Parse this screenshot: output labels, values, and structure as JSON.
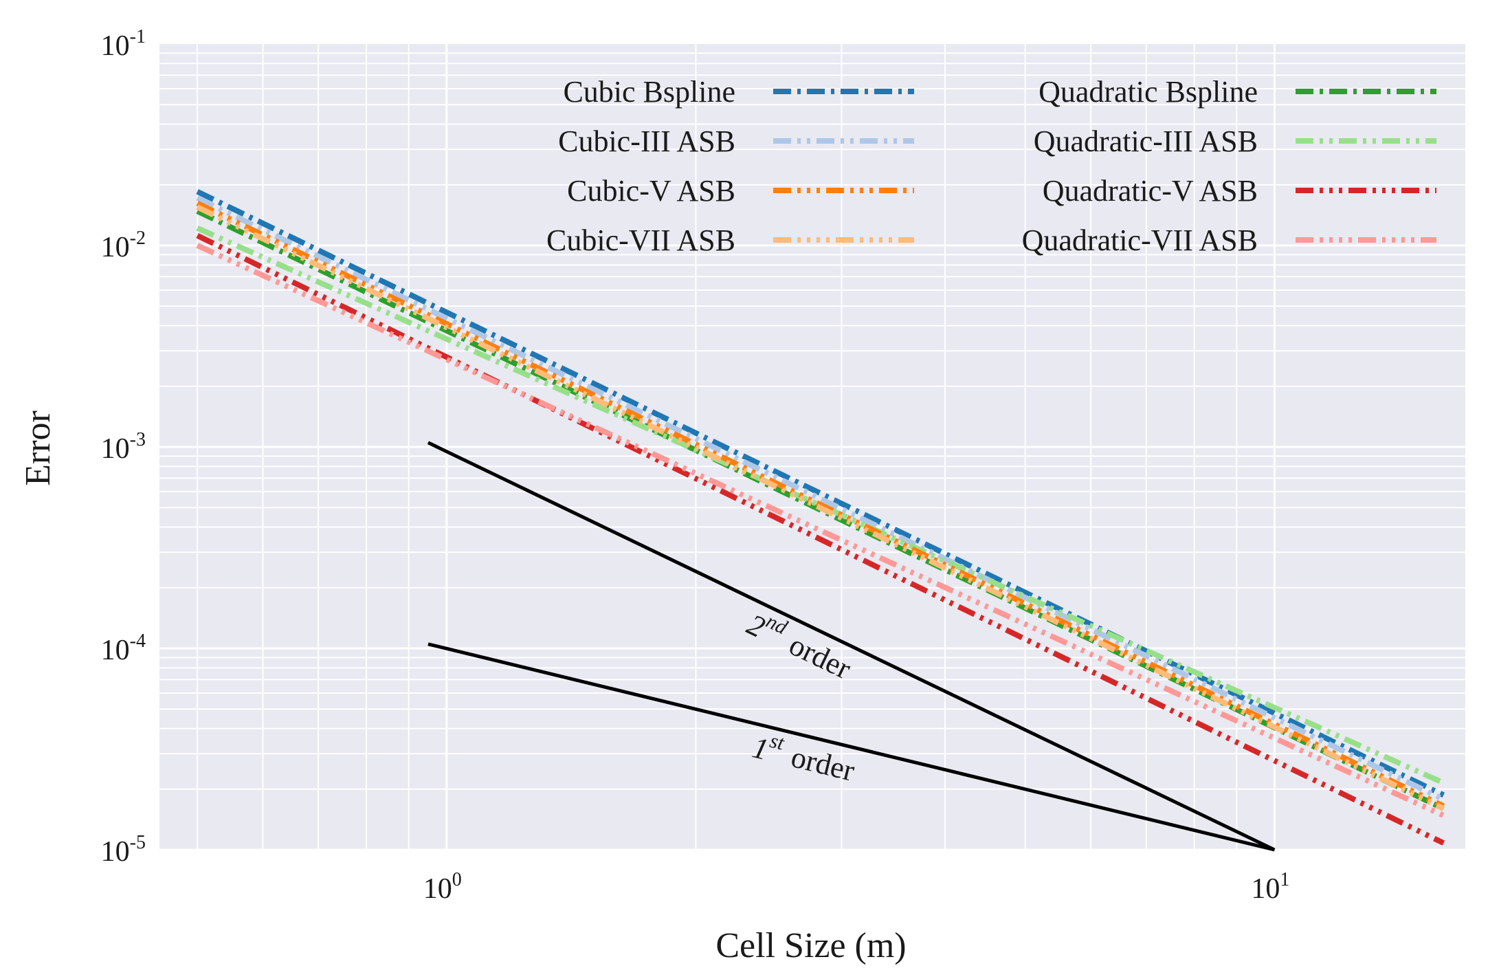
{
  "chart_data": {
    "type": "line",
    "xlabel": "Cell Size (m)",
    "ylabel": "Error",
    "xscale": "log",
    "yscale": "log",
    "xlim": [
      0.45,
      17
    ],
    "ylim": [
      1e-05,
      0.1
    ],
    "grid": true,
    "legend_position": "top-right",
    "x_ticks": [
      {
        "value": 1,
        "base": "10",
        "exp": "0"
      },
      {
        "value": 10,
        "base": "10",
        "exp": "1"
      }
    ],
    "y_ticks": [
      {
        "value": 0.1,
        "base": "10",
        "exp": "-1"
      },
      {
        "value": 0.01,
        "base": "10",
        "exp": "-2"
      },
      {
        "value": 0.001,
        "base": "10",
        "exp": "-3"
      },
      {
        "value": 0.0001,
        "base": "10",
        "exp": "-4"
      },
      {
        "value": 1e-05,
        "base": "10",
        "exp": "-5"
      }
    ],
    "x": [
      0.5,
      16
    ],
    "series": [
      {
        "name": "Cubic Bspline",
        "color": "#1f77b4",
        "dash": "dashdot",
        "values": [
          0.0185,
          1.87e-05
        ]
      },
      {
        "name": "Quadratic Bspline",
        "color": "#2ca02c",
        "dash": "dashdot",
        "values": [
          0.0148,
          1.6e-05
        ]
      },
      {
        "name": "Cubic-III ASB",
        "color": "#aec7e8",
        "dash": "dashdotdot",
        "values": [
          0.0172,
          1.78e-05
        ]
      },
      {
        "name": "Quadratic-III ASB",
        "color": "#98df8a",
        "dash": "dashdotdot",
        "values": [
          0.0122,
          2.15e-05
        ]
      },
      {
        "name": "Cubic-V ASB",
        "color": "#ff7f0e",
        "dash": "dashdotdotdot",
        "values": [
          0.0162,
          1.65e-05
        ]
      },
      {
        "name": "Quadratic-V ASB",
        "color": "#d62728",
        "dash": "dashdotdotdot",
        "values": [
          0.0112,
          1.08e-05
        ]
      },
      {
        "name": "Cubic-VII ASB",
        "color": "#ffbb78",
        "dash": "dashdotdotdotdot",
        "values": [
          0.0155,
          1.6e-05
        ]
      },
      {
        "name": "Quadratic-VII ASB",
        "color": "#ff9896",
        "dash": "dashdotdotdotdot",
        "values": [
          0.01,
          1.48e-05
        ]
      }
    ],
    "reference_lines": [
      {
        "label": "2",
        "sup": "nd",
        "word": "order",
        "x": [
          0.95,
          10
        ],
        "values": [
          0.00105,
          1e-05
        ]
      },
      {
        "label": "1",
        "sup": "st",
        "word": "order",
        "x": [
          0.95,
          10
        ],
        "values": [
          0.000105,
          1e-05
        ]
      }
    ]
  }
}
